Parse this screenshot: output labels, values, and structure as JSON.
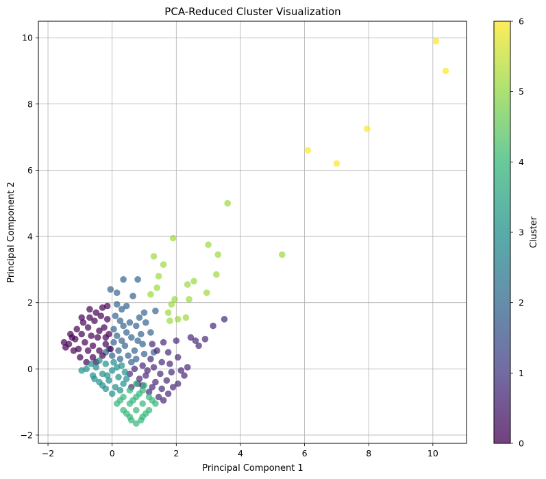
{
  "chart_data": {
    "type": "scatter",
    "title": "PCA-Reduced Cluster Visualization",
    "xlabel": "Principal Component 1",
    "ylabel": "Principal Component 2",
    "xlim": [
      -2.3,
      11.05
    ],
    "ylim": [
      -2.25,
      10.5
    ],
    "x_ticks": [
      -2,
      0,
      2,
      4,
      6,
      8,
      10
    ],
    "y_ticks": [
      -2,
      0,
      2,
      4,
      6,
      8,
      10
    ],
    "grid": true,
    "colorbar": {
      "label": "Cluster",
      "range": [
        0,
        6
      ],
      "ticks": [
        0,
        1,
        2,
        3,
        4,
        5,
        6
      ],
      "colormap": "viridis"
    },
    "series": [
      {
        "cluster": 6,
        "color": "#fde725",
        "points": [
          [
            10.1,
            9.9
          ],
          [
            10.4,
            9.0
          ],
          [
            7.95,
            7.25
          ],
          [
            6.1,
            6.6
          ],
          [
            7.0,
            6.2
          ]
        ]
      },
      {
        "cluster": 5,
        "color": "#9bd93c",
        "points": [
          [
            3.6,
            5.0
          ],
          [
            5.3,
            3.45
          ],
          [
            1.9,
            3.95
          ],
          [
            3.0,
            3.75
          ],
          [
            3.3,
            3.45
          ],
          [
            1.3,
            3.4
          ],
          [
            1.6,
            3.15
          ],
          [
            1.45,
            2.8
          ],
          [
            3.25,
            2.85
          ],
          [
            2.55,
            2.65
          ],
          [
            2.35,
            2.55
          ],
          [
            1.4,
            2.45
          ],
          [
            1.2,
            2.25
          ],
          [
            2.95,
            2.3
          ],
          [
            2.4,
            2.1
          ],
          [
            1.95,
            2.1
          ],
          [
            1.85,
            1.95
          ],
          [
            1.75,
            1.7
          ],
          [
            2.05,
            1.5
          ],
          [
            2.3,
            1.55
          ],
          [
            1.8,
            1.45
          ]
        ]
      },
      {
        "cluster": 2,
        "color": "#33638d",
        "points": [
          [
            0.35,
            2.7
          ],
          [
            0.8,
            2.7
          ],
          [
            -0.05,
            2.4
          ],
          [
            0.15,
            2.3
          ],
          [
            0.65,
            2.2
          ],
          [
            0.15,
            1.95
          ],
          [
            0.45,
            1.9
          ],
          [
            0.3,
            1.8
          ],
          [
            1.0,
            1.7
          ],
          [
            1.35,
            1.75
          ],
          [
            0.1,
            1.6
          ],
          [
            0.85,
            1.55
          ],
          [
            0.25,
            1.45
          ],
          [
            0.55,
            1.4
          ],
          [
            1.05,
            1.4
          ],
          [
            0.75,
            1.3
          ],
          [
            0.35,
            1.3
          ],
          [
            0.05,
            1.2
          ],
          [
            0.45,
            1.1
          ],
          [
            0.9,
            1.05
          ],
          [
            0.15,
            1.0
          ],
          [
            0.6,
            0.95
          ],
          [
            1.2,
            1.1
          ],
          [
            0.3,
            0.85
          ],
          [
            0.8,
            0.85
          ],
          [
            0.05,
            0.8
          ],
          [
            0.4,
            0.7
          ],
          [
            0.95,
            0.75
          ],
          [
            0.2,
            0.55
          ],
          [
            0.7,
            0.55
          ],
          [
            -0.1,
            0.6
          ],
          [
            0.5,
            0.4
          ],
          [
            1.0,
            0.45
          ],
          [
            0.25,
            0.3
          ],
          [
            0.75,
            0.3
          ],
          [
            0.0,
            0.4
          ],
          [
            1.3,
            0.5
          ],
          [
            0.6,
            0.2
          ],
          [
            -0.2,
            0.5
          ]
        ]
      },
      {
        "cluster": 1,
        "color": "#482878",
        "points": [
          [
            3.5,
            1.5
          ],
          [
            3.15,
            1.3
          ],
          [
            2.45,
            0.95
          ],
          [
            2.6,
            0.85
          ],
          [
            2.9,
            0.9
          ],
          [
            2.7,
            0.7
          ],
          [
            2.0,
            0.85
          ],
          [
            1.6,
            0.8
          ],
          [
            1.25,
            0.75
          ],
          [
            1.4,
            0.55
          ],
          [
            1.75,
            0.5
          ],
          [
            2.05,
            0.35
          ],
          [
            1.2,
            0.3
          ],
          [
            1.55,
            0.2
          ],
          [
            2.35,
            0.05
          ],
          [
            2.15,
            -0.05
          ],
          [
            1.85,
            -0.1
          ],
          [
            1.5,
            -0.15
          ],
          [
            1.05,
            -0.2
          ],
          [
            2.25,
            -0.2
          ],
          [
            1.7,
            -0.35
          ],
          [
            1.35,
            -0.4
          ],
          [
            0.95,
            -0.5
          ],
          [
            1.9,
            -0.55
          ],
          [
            1.55,
            -0.6
          ],
          [
            1.15,
            -0.7
          ],
          [
            1.75,
            -0.75
          ],
          [
            1.45,
            -0.85
          ],
          [
            1.6,
            -0.95
          ],
          [
            0.85,
            -0.3
          ],
          [
            0.7,
            0.0
          ],
          [
            0.95,
            0.1
          ],
          [
            1.1,
            -0.05
          ],
          [
            0.55,
            -0.15
          ],
          [
            1.3,
            0.05
          ],
          [
            0.8,
            -0.45
          ],
          [
            0.6,
            -0.55
          ],
          [
            1.8,
            0.15
          ],
          [
            2.05,
            -0.45
          ],
          [
            1.25,
            -0.55
          ]
        ]
      },
      {
        "cluster": 0,
        "color": "#440154",
        "points": [
          [
            -1.5,
            0.8
          ],
          [
            -1.3,
            1.05
          ],
          [
            -1.1,
            1.2
          ],
          [
            -0.9,
            1.4
          ],
          [
            -0.7,
            1.55
          ],
          [
            -0.5,
            1.7
          ],
          [
            -0.3,
            1.85
          ],
          [
            -0.35,
            1.6
          ],
          [
            -0.55,
            1.45
          ],
          [
            -0.75,
            1.25
          ],
          [
            -0.95,
            1.05
          ],
          [
            -1.15,
            0.9
          ],
          [
            -1.35,
            0.75
          ],
          [
            -1.2,
            0.55
          ],
          [
            -1.0,
            0.35
          ],
          [
            -0.8,
            0.2
          ],
          [
            -0.6,
            0.35
          ],
          [
            -0.4,
            0.55
          ],
          [
            -0.2,
            0.75
          ],
          [
            -0.45,
            0.95
          ],
          [
            -0.65,
            1.0
          ],
          [
            -0.85,
            0.8
          ],
          [
            -1.05,
            0.6
          ],
          [
            -0.25,
            1.25
          ],
          [
            -0.15,
            1.5
          ],
          [
            -0.4,
            1.15
          ],
          [
            -0.6,
            0.7
          ],
          [
            -0.95,
            1.55
          ],
          [
            -0.1,
            1.05
          ],
          [
            -1.25,
            0.95
          ],
          [
            -0.75,
            0.55
          ],
          [
            -0.3,
            0.4
          ],
          [
            -0.5,
            0.2
          ],
          [
            -0.05,
            0.6
          ],
          [
            -1.45,
            0.65
          ],
          [
            -0.15,
            1.9
          ],
          [
            -0.7,
            1.8
          ],
          [
            -0.2,
            0.95
          ]
        ]
      },
      {
        "cluster": 3,
        "color": "#21908d",
        "points": [
          [
            -0.8,
            0.0
          ],
          [
            -0.6,
            -0.2
          ],
          [
            -0.4,
            -0.4
          ],
          [
            -0.2,
            -0.6
          ],
          [
            0.0,
            -0.75
          ],
          [
            -0.5,
            0.05
          ],
          [
            -0.3,
            -0.15
          ],
          [
            -0.1,
            -0.35
          ],
          [
            0.1,
            -0.55
          ],
          [
            -0.2,
            0.15
          ],
          [
            0.0,
            -0.05
          ],
          [
            0.2,
            -0.25
          ],
          [
            0.35,
            -0.45
          ],
          [
            -0.65,
            0.15
          ],
          [
            -0.4,
            0.25
          ],
          [
            0.15,
            0.05
          ],
          [
            0.4,
            -0.1
          ],
          [
            -0.95,
            -0.05
          ],
          [
            -0.3,
            -0.5
          ],
          [
            0.25,
            -0.65
          ],
          [
            0.45,
            -0.3
          ],
          [
            -0.55,
            -0.3
          ],
          [
            0.05,
            0.2
          ],
          [
            -0.15,
            -0.2
          ],
          [
            0.3,
            0.1
          ]
        ]
      },
      {
        "cluster": 4,
        "color": "#35b779",
        "points": [
          [
            0.75,
            -1.65
          ],
          [
            0.55,
            -1.45
          ],
          [
            0.95,
            -1.45
          ],
          [
            0.35,
            -1.25
          ],
          [
            0.75,
            -1.25
          ],
          [
            1.15,
            -1.25
          ],
          [
            0.15,
            -1.05
          ],
          [
            0.55,
            -1.05
          ],
          [
            0.95,
            -1.05
          ],
          [
            1.35,
            -1.05
          ],
          [
            0.35,
            -0.85
          ],
          [
            0.75,
            -0.85
          ],
          [
            1.15,
            -0.85
          ],
          [
            0.55,
            -0.65
          ],
          [
            0.95,
            -0.65
          ],
          [
            0.75,
            -0.45
          ],
          [
            0.6,
            -1.55
          ],
          [
            0.9,
            -1.55
          ],
          [
            0.45,
            -1.35
          ],
          [
            1.05,
            -1.35
          ],
          [
            0.25,
            -0.95
          ],
          [
            1.25,
            -0.95
          ],
          [
            0.85,
            -0.75
          ],
          [
            0.65,
            -0.95
          ],
          [
            1.0,
            -0.5
          ]
        ]
      }
    ]
  }
}
